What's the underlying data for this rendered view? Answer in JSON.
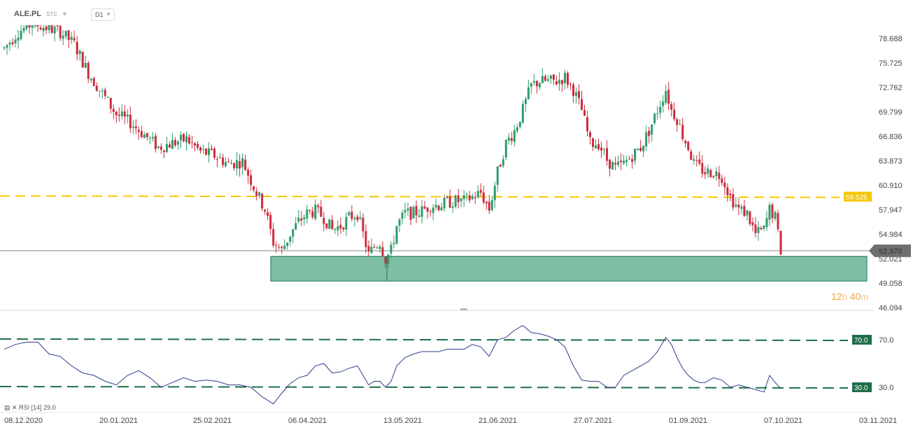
{
  "toolbar": {
    "symbol": "ALE.PL",
    "symbol_sub": "STC",
    "timeframe": "D1",
    "chevron_icon": "chevron-down-icon"
  },
  "timer": {
    "hours": "12",
    "h_unit": "h",
    "minutes": "40",
    "m_unit": "m"
  },
  "rsi_label": {
    "name": "RSI",
    "param": "[14]",
    "value": "29.0"
  },
  "colors": {
    "bull": "#2e9c6a",
    "bear": "#cc2b3b",
    "zone_fill": "#7fbfa3",
    "zone_border": "#1b7a52",
    "resistance": "#f5c800",
    "rsi_line": "#2c3e8a",
    "rsi_level": "#1f6e4a",
    "last_price_tag": "#6f6f6f"
  },
  "chart_data": [
    {
      "type": "candlestick",
      "title": "",
      "y_ticks": [
        "78.688",
        "75.725",
        "72.762",
        "69.799",
        "66.836",
        "63.873",
        "60.910",
        "57.947",
        "54.984",
        "52.021",
        "49.058",
        "46.094"
      ],
      "ylim": [
        46.094,
        80.5
      ],
      "x_ticks": [
        "08.12.2020",
        "20.01.2021",
        "25.02.2021",
        "06.04.2021",
        "13.05.2021",
        "21.06.2021",
        "27.07.2021",
        "01.09.2021",
        "07.10.2021",
        "03.11.2021"
      ],
      "resistance": {
        "value": 59.525,
        "label": "59.525"
      },
      "last_price": {
        "value": 52.97,
        "label": "52.970"
      },
      "support_zone": {
        "low": 49.3,
        "high": 52.3
      },
      "keypoints": [
        [
          0,
          77.5
        ],
        [
          5,
          79.5
        ],
        [
          10,
          80.5
        ],
        [
          15,
          80
        ],
        [
          20,
          79.5
        ],
        [
          25,
          78
        ],
        [
          30,
          74.5
        ],
        [
          35,
          72
        ],
        [
          40,
          69.5
        ],
        [
          45,
          68.5
        ],
        [
          50,
          67
        ],
        [
          55,
          65.5
        ],
        [
          60,
          66
        ],
        [
          65,
          66.5
        ],
        [
          70,
          65
        ],
        [
          75,
          64.5
        ],
        [
          80,
          63.5
        ],
        [
          85,
          63.8
        ],
        [
          90,
          60
        ],
        [
          93,
          58
        ],
        [
          96,
          54
        ],
        [
          99,
          53
        ],
        [
          102,
          55
        ],
        [
          105,
          56.5
        ],
        [
          108,
          57.5
        ],
        [
          111,
          57.8
        ],
        [
          114,
          57
        ],
        [
          117,
          55.5
        ],
        [
          120,
          56
        ],
        [
          123,
          57
        ],
        [
          126,
          57.5
        ],
        [
          128,
          55
        ],
        [
          130,
          52.5
        ],
        [
          132,
          53.5
        ],
        [
          134,
          54
        ],
        [
          136,
          52
        ],
        [
          138,
          53
        ],
        [
          140,
          56
        ],
        [
          143,
          57.5
        ],
        [
          146,
          57.5
        ],
        [
          149,
          57.8
        ],
        [
          152,
          58.5
        ],
        [
          155,
          58.5
        ],
        [
          158,
          58.8
        ],
        [
          161,
          59
        ],
        [
          164,
          59
        ],
        [
          167,
          59.5
        ],
        [
          170,
          60
        ],
        [
          173,
          58
        ],
        [
          176,
          62.5
        ],
        [
          179,
          66
        ],
        [
          182,
          67.5
        ],
        [
          185,
          70
        ],
        [
          188,
          73
        ],
        [
          191,
          73.5
        ],
        [
          194,
          73.5
        ],
        [
          197,
          73.5
        ],
        [
          200,
          74
        ],
        [
          203,
          72.5
        ],
        [
          206,
          70
        ],
        [
          209,
          66
        ],
        [
          212,
          66
        ],
        [
          215,
          64
        ],
        [
          218,
          63
        ],
        [
          221,
          63.5
        ],
        [
          224,
          64.5
        ],
        [
          227,
          65.5
        ],
        [
          230,
          67.5
        ],
        [
          233,
          70
        ],
        [
          236,
          72.5
        ],
        [
          238,
          70
        ],
        [
          240,
          69
        ],
        [
          242,
          67
        ],
        [
          244,
          65.5
        ],
        [
          246,
          63.5
        ],
        [
          248,
          63
        ],
        [
          250,
          62.5
        ],
        [
          253,
          62.5
        ],
        [
          256,
          62
        ],
        [
          259,
          59.5
        ],
        [
          262,
          58
        ],
        [
          265,
          57.5
        ],
        [
          268,
          55
        ],
        [
          271,
          55.5
        ],
        [
          273,
          58
        ],
        [
          275,
          57
        ],
        [
          277,
          53
        ]
      ]
    },
    {
      "type": "line",
      "name": "RSI [14]",
      "y_ticks": [
        "70.0",
        "30.0"
      ],
      "ylim": [
        10,
        90
      ],
      "levels": [
        {
          "value": 70,
          "label": "70.0"
        },
        {
          "value": 30,
          "label": "30.0"
        }
      ],
      "points": [
        [
          0,
          62
        ],
        [
          4,
          66
        ],
        [
          8,
          68
        ],
        [
          12,
          68
        ],
        [
          16,
          58
        ],
        [
          20,
          56
        ],
        [
          24,
          48
        ],
        [
          28,
          42
        ],
        [
          32,
          40
        ],
        [
          36,
          35
        ],
        [
          40,
          32
        ],
        [
          44,
          40
        ],
        [
          48,
          44
        ],
        [
          52,
          38
        ],
        [
          56,
          30
        ],
        [
          60,
          34
        ],
        [
          64,
          38
        ],
        [
          68,
          35
        ],
        [
          72,
          36
        ],
        [
          76,
          35
        ],
        [
          80,
          32
        ],
        [
          84,
          32
        ],
        [
          88,
          30
        ],
        [
          92,
          22
        ],
        [
          96,
          16
        ],
        [
          99,
          25
        ],
        [
          102,
          33
        ],
        [
          105,
          38
        ],
        [
          108,
          40
        ],
        [
          111,
          48
        ],
        [
          114,
          50
        ],
        [
          117,
          42
        ],
        [
          120,
          43
        ],
        [
          123,
          46
        ],
        [
          126,
          48
        ],
        [
          128,
          40
        ],
        [
          130,
          32
        ],
        [
          132,
          35
        ],
        [
          134,
          35
        ],
        [
          136,
          30
        ],
        [
          138,
          35
        ],
        [
          140,
          48
        ],
        [
          143,
          55
        ],
        [
          146,
          58
        ],
        [
          149,
          60
        ],
        [
          152,
          60
        ],
        [
          155,
          60
        ],
        [
          158,
          62
        ],
        [
          161,
          62
        ],
        [
          164,
          62
        ],
        [
          167,
          66
        ],
        [
          170,
          64
        ],
        [
          173,
          56
        ],
        [
          176,
          70
        ],
        [
          179,
          72
        ],
        [
          182,
          78
        ],
        [
          185,
          82
        ],
        [
          188,
          76
        ],
        [
          191,
          75
        ],
        [
          194,
          73
        ],
        [
          197,
          70
        ],
        [
          200,
          64
        ],
        [
          203,
          48
        ],
        [
          206,
          36
        ],
        [
          209,
          35
        ],
        [
          212,
          35
        ],
        [
          215,
          30
        ],
        [
          218,
          30
        ],
        [
          221,
          40
        ],
        [
          224,
          44
        ],
        [
          227,
          48
        ],
        [
          230,
          52
        ],
        [
          233,
          60
        ],
        [
          236,
          72
        ],
        [
          238,
          66
        ],
        [
          240,
          55
        ],
        [
          242,
          46
        ],
        [
          244,
          40
        ],
        [
          246,
          36
        ],
        [
          248,
          34
        ],
        [
          250,
          34
        ],
        [
          253,
          38
        ],
        [
          256,
          36
        ],
        [
          259,
          30
        ],
        [
          262,
          32
        ],
        [
          265,
          30
        ],
        [
          268,
          28
        ],
        [
          271,
          26
        ],
        [
          273,
          40
        ],
        [
          275,
          34
        ],
        [
          277,
          29
        ]
      ]
    }
  ]
}
